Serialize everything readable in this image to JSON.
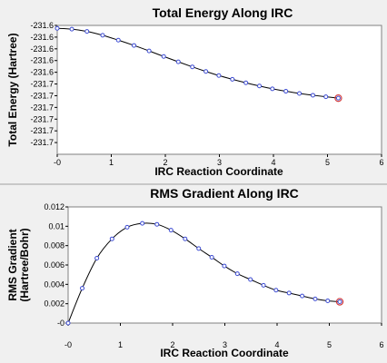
{
  "chart_data": [
    {
      "type": "line",
      "title": "Total Energy Along IRC",
      "xlabel": "IRC Reaction Coordinate",
      "ylabel": "Total Energy (Hartree)",
      "xlim": [
        0,
        6
      ],
      "ylim": [
        -231.7141,
        -231.6041
      ],
      "x_ticks": [
        "-0",
        "1",
        "2",
        "3",
        "4",
        "5",
        "6"
      ],
      "x_tick_values": [
        0,
        1,
        2,
        3,
        4,
        5,
        6
      ],
      "y_ticks": [
        "-231.6",
        "-231.6",
        "-231.6",
        "-231.6",
        "-231.6",
        "-231.7",
        "-231.7",
        "-231.7",
        "-231.7",
        "-231.7",
        "-231.7"
      ],
      "y_tick_values": [
        -231.6041,
        -231.6141,
        -231.6241,
        -231.6341,
        -231.6441,
        -231.6541,
        -231.6641,
        -231.6741,
        -231.6841,
        -231.6941,
        -231.7041
      ],
      "grid": false,
      "series": [
        {
          "color": "#000000",
          "marker_color": "#3c4bd2",
          "highlight_color": "#d23c3c",
          "x": [
            0.0,
            0.27,
            0.55,
            0.84,
            1.13,
            1.42,
            1.7,
            1.97,
            2.24,
            2.5,
            2.75,
            2.99,
            3.24,
            3.49,
            3.74,
            3.98,
            4.23,
            4.48,
            4.73,
            4.97,
            5.2
          ],
          "y": [
            -231.6066,
            -231.6073,
            -231.6092,
            -231.6125,
            -231.6167,
            -231.6212,
            -231.6259,
            -231.6306,
            -231.6352,
            -231.6395,
            -231.6434,
            -231.6469,
            -231.6501,
            -231.6531,
            -231.6558,
            -231.6582,
            -231.6603,
            -231.6622,
            -231.6637,
            -231.665,
            -231.6662
          ]
        }
      ]
    },
    {
      "type": "line",
      "title": "RMS Gradient Along IRC",
      "xlabel": "IRC Reaction Coordinate",
      "ylabel": "RMS Gradient (Hartree/Bohr)",
      "ylabel_lines": [
        "RMS Gradient",
        "(Hartree/Bohr)"
      ],
      "xlim": [
        0,
        6
      ],
      "ylim": [
        0,
        0.012
      ],
      "x_ticks": [
        "-0",
        "1",
        "2",
        "3",
        "4",
        "5",
        "6"
      ],
      "x_tick_values": [
        0,
        1,
        2,
        3,
        4,
        5,
        6
      ],
      "y_ticks": [
        "-0",
        "0.002",
        "0.004",
        "0.006",
        "0.008",
        "0.01",
        "0.012"
      ],
      "y_tick_values": [
        0,
        0.002,
        0.004,
        0.006,
        0.008,
        0.01,
        0.012
      ],
      "grid": false,
      "series": [
        {
          "color": "#000000",
          "marker_color": "#3c4bd2",
          "highlight_color": "#d23c3c",
          "x": [
            0.0,
            0.27,
            0.55,
            0.84,
            1.13,
            1.42,
            1.7,
            1.97,
            2.24,
            2.5,
            2.75,
            2.99,
            3.24,
            3.49,
            3.74,
            3.98,
            4.23,
            4.48,
            4.73,
            4.97,
            5.2
          ],
          "y": [
            0.0,
            0.0036,
            0.0067,
            0.0087,
            0.0099,
            0.0103,
            0.0102,
            0.0096,
            0.0087,
            0.0077,
            0.0068,
            0.0059,
            0.0051,
            0.0045,
            0.0039,
            0.0034,
            0.0031,
            0.0028,
            0.0025,
            0.0023,
            0.0022
          ]
        }
      ]
    }
  ]
}
